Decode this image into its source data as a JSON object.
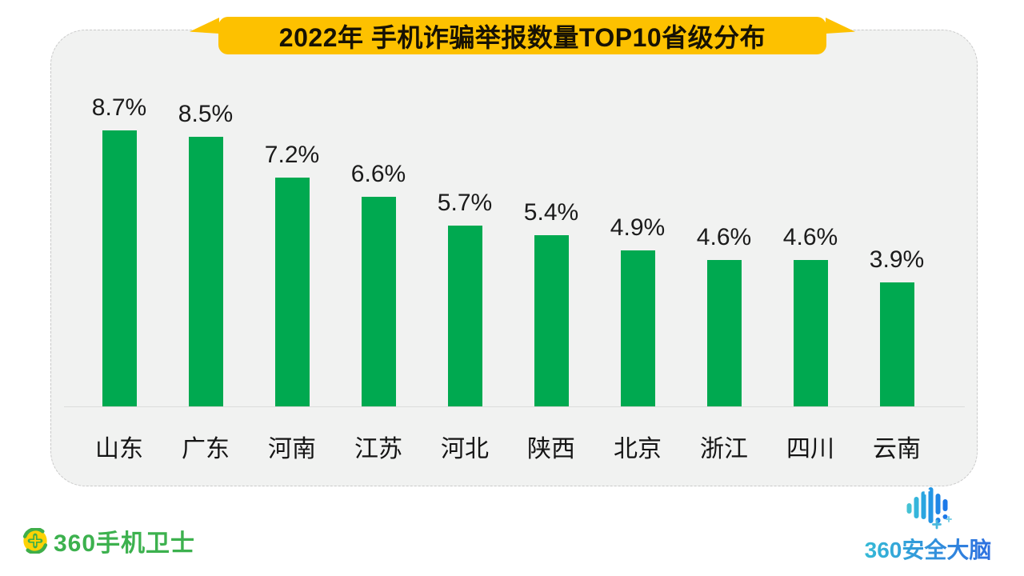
{
  "title": "2022年 手机诈骗举报数量TOP10省级分布",
  "chart_data": {
    "type": "bar",
    "title": "2022年 手机诈骗举报数量TOP10省级分布",
    "categories": [
      "山东",
      "广东",
      "河南",
      "江苏",
      "河北",
      "陕西",
      "北京",
      "浙江",
      "四川",
      "云南"
    ],
    "values": [
      8.7,
      8.5,
      7.2,
      6.6,
      5.7,
      5.4,
      4.9,
      4.6,
      4.6,
      3.9
    ],
    "value_labels": [
      "8.7%",
      "8.5%",
      "7.2%",
      "6.6%",
      "5.7%",
      "5.4%",
      "4.9%",
      "4.6%",
      "4.6%",
      "3.9%"
    ],
    "unit": "%",
    "xlabel": "",
    "ylabel": "",
    "ylim": [
      0,
      10
    ],
    "grid": false,
    "legend": "none",
    "bar_color": "#00a950"
  },
  "footer": {
    "left_logo": {
      "text": "360手机卫士",
      "icon": "360-mobile-guard-icon"
    },
    "right_logo": {
      "text": "360安全大脑",
      "icon": "brain-wave-icon"
    }
  },
  "colors": {
    "banner_yellow": "#fdc100",
    "bar_green": "#00a950",
    "card_bg": "#f1f2f1",
    "text_dark": "#1b1b1b",
    "logo_green": "#3cb14e",
    "logo_blue_start": "#35b9d6",
    "logo_blue_end": "#2e6fe0"
  }
}
